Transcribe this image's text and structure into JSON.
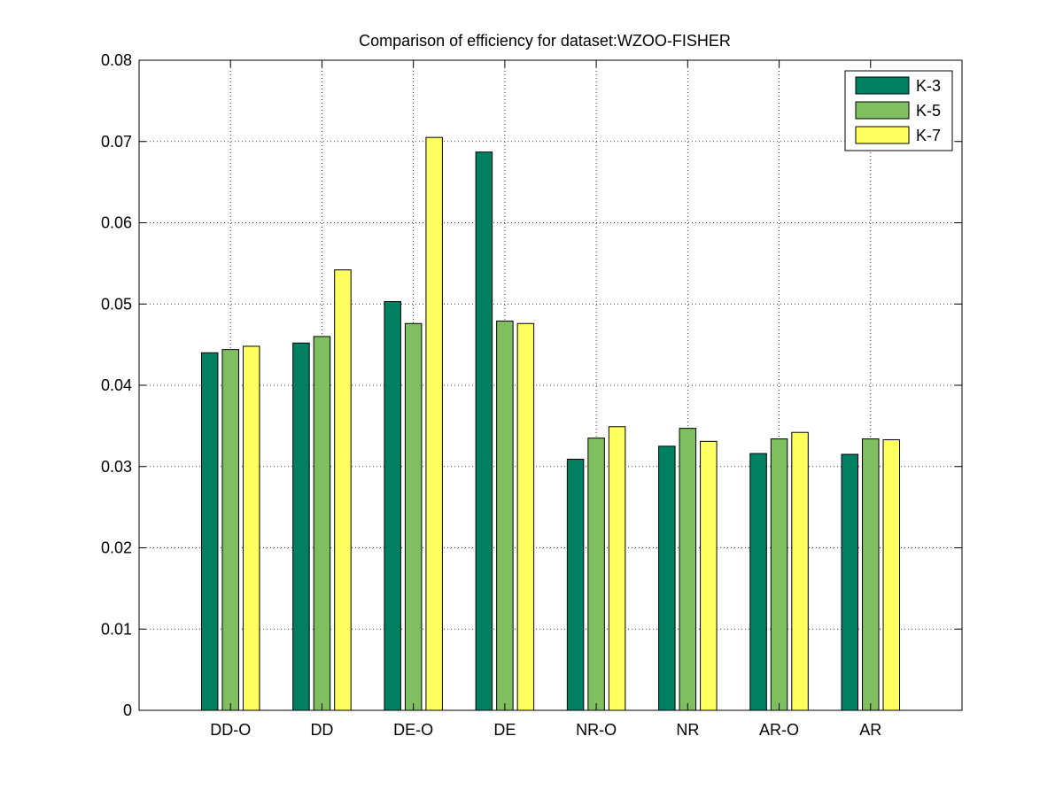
{
  "chart_data": {
    "type": "bar",
    "title": "Comparison of efficiency for dataset:WZOO-FISHER",
    "xlabel": "",
    "ylabel": "",
    "categories": [
      "DD-O",
      "DD",
      "DE-O",
      "DE",
      "NR-O",
      "NR",
      "AR-O",
      "AR"
    ],
    "series": [
      {
        "name": "K-3",
        "color": "#008060",
        "values": [
          0.044,
          0.0452,
          0.0503,
          0.0687,
          0.0309,
          0.0325,
          0.0316,
          0.0315
        ]
      },
      {
        "name": "K-5",
        "color": "#80bf60",
        "values": [
          0.0444,
          0.046,
          0.0476,
          0.0479,
          0.0335,
          0.0347,
          0.0334,
          0.0334
        ]
      },
      {
        "name": "K-7",
        "color": "#ffff60",
        "values": [
          0.0448,
          0.0542,
          0.0705,
          0.0476,
          0.0349,
          0.0331,
          0.0342,
          0.0333
        ]
      }
    ],
    "ylim": [
      0,
      0.08
    ],
    "yticks": [
      "0",
      "0.01",
      "0.02",
      "0.03",
      "0.04",
      "0.05",
      "0.06",
      "0.07",
      "0.08"
    ],
    "grid": true,
    "legend_position": "top-right"
  }
}
